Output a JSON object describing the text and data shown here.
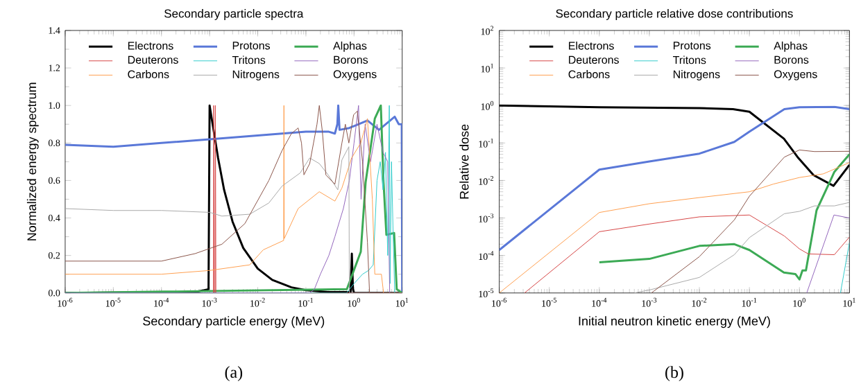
{
  "chart_data": [
    {
      "type": "line",
      "title": "Secondary particle spectra",
      "xlabel": "Secondary particle energy (MeV)",
      "ylabel": "Normalized energy spectrum",
      "annotations": [
        "(a)"
      ],
      "log": "x",
      "legend": "top",
      "xlim": [
        1e-06,
        10
      ],
      "ylim": [
        0,
        1.4
      ],
      "xticks": [
        {
          "value": 1e-06,
          "label": "10$^{-6}$"
        },
        {
          "value": 1e-05,
          "label": "10$^{-5}$"
        },
        {
          "value": 0.0001,
          "label": "10$^{-4}$"
        },
        {
          "value": 0.001,
          "label": "10$^{-3}$"
        },
        {
          "value": 0.01,
          "label": "10$^{-2}$"
        },
        {
          "value": 0.1,
          "label": "10$^{-1}$"
        },
        {
          "value": 1,
          "label": "10$^{0}$"
        },
        {
          "value": 10,
          "label": "10$^{1}$"
        }
      ],
      "yticks": [
        {
          "value": 0,
          "label": "0.0"
        },
        {
          "value": 0.2,
          "label": "0.2"
        },
        {
          "value": 0.4,
          "label": "0.4"
        },
        {
          "value": 0.6,
          "label": "0.6"
        },
        {
          "value": 0.8,
          "label": "0.8"
        },
        {
          "value": 1.0,
          "label": "1.0"
        },
        {
          "value": 1.2,
          "label": "1.2"
        },
        {
          "value": 1.4,
          "label": "1.4"
        }
      ],
      "series": [
        {
          "name": "Electrons",
          "color": "#000000",
          "x": [
            1e-06,
            0.0005,
            0.00095,
            0.001,
            0.0015,
            0.002,
            0.003,
            0.005,
            0.01,
            0.02,
            0.05,
            0.1,
            0.3,
            0.85,
            0.9,
            0.95,
            1,
            10
          ],
          "values": [
            0,
            0.005,
            0.02,
            1.0,
            0.72,
            0.55,
            0.38,
            0.24,
            0.13,
            0.07,
            0.03,
            0.015,
            0.005,
            0.005,
            0.21,
            0.02,
            0,
            0
          ]
        },
        {
          "name": "Protons",
          "color": "#5a78d8",
          "x": [
            1e-06,
            1e-05,
            0.0001,
            0.001,
            0.01,
            0.1,
            0.3,
            0.4,
            0.45,
            0.47,
            0.5,
            0.8,
            1.9,
            3.3,
            7,
            8.5,
            9.8,
            10
          ],
          "values": [
            0.79,
            0.78,
            0.8,
            0.82,
            0.84,
            0.86,
            0.86,
            0.85,
            0.9,
            1.0,
            0.87,
            0.88,
            0.92,
            0.87,
            0.94,
            0.9,
            0.9,
            0
          ]
        },
        {
          "name": "Alphas",
          "color": "#3caa55",
          "x": [
            1e-06,
            0.71,
            1.38,
            1.74,
            2.7,
            3.6,
            4.1,
            4.7,
            6.8,
            7.7,
            10
          ],
          "values": [
            0,
            0.02,
            0.22,
            0.59,
            0.93,
            1.0,
            0.59,
            0.31,
            0.32,
            0.02,
            0
          ]
        },
        {
          "name": "Deuterons",
          "color": "#d64545",
          "x": [
            1e-06,
            0.0012,
            0.00122,
            0.00125,
            0.0013,
            0.00132,
            0.00135,
            10
          ],
          "values": [
            0,
            0,
            1.0,
            0,
            0,
            1.0,
            0,
            0
          ]
        },
        {
          "name": "Tritons",
          "color": "#33cccc",
          "x": [
            1e-06,
            0.7,
            1,
            1.5,
            2,
            2.5,
            3,
            3.5,
            4,
            4.5,
            5,
            5.4,
            5.6,
            6,
            6.5,
            7,
            10
          ],
          "values": [
            0,
            0,
            0.05,
            0.1,
            0.12,
            0.15,
            0.6,
            0.7,
            0.55,
            0.75,
            0.2,
            1.0,
            0.05,
            0.7,
            0.3,
            0,
            0
          ]
        },
        {
          "name": "Borons",
          "color": "#9467bd",
          "x": [
            1e-06,
            0.12,
            0.15,
            0.2,
            0.3,
            0.4,
            0.6,
            0.8,
            1.0,
            1.24,
            1.4,
            1.7,
            2.2,
            3,
            4,
            5,
            5.5,
            10
          ],
          "values": [
            0,
            0,
            0.02,
            0.1,
            0.2,
            0.3,
            0.45,
            0.6,
            0.8,
            1.0,
            0.5,
            0.9,
            0.7,
            0.9,
            0.75,
            0.7,
            0,
            0
          ]
        },
        {
          "name": "Carbons",
          "color": "#ffa050",
          "x": [
            1e-06,
            0.0001,
            0.001,
            0.0068,
            0.013,
            0.0345,
            0.035,
            0.0355,
            0.069,
            0.19,
            0.4,
            0.56,
            0.89,
            1.38,
            1.9,
            2.4,
            2.7,
            3.7,
            4.1,
            10
          ],
          "values": [
            0.1,
            0.1,
            0.12,
            0.15,
            0.23,
            0.28,
            1.0,
            0.29,
            0.45,
            0.54,
            0.49,
            0.56,
            0.72,
            0.8,
            0.93,
            0.5,
            0.1,
            0.1,
            0,
            0
          ]
        },
        {
          "name": "Nitrogens",
          "color": "#aaaaaa",
          "x": [
            1e-06,
            1e-05,
            0.0001,
            0.001,
            0.0018,
            0.0068,
            0.017,
            0.032,
            0.076,
            0.12,
            0.19,
            0.29,
            0.46,
            0.56,
            0.78,
            0.8,
            10
          ],
          "values": [
            0.45,
            0.44,
            0.44,
            0.43,
            0.41,
            0.42,
            0.48,
            0.57,
            0.64,
            0.72,
            0.69,
            0.63,
            0.55,
            0.71,
            0.78,
            0,
            0
          ]
        },
        {
          "name": "Oxygens",
          "color": "#8c564b",
          "x": [
            1e-06,
            0.0001,
            0.0005,
            0.0018,
            0.0054,
            0.017,
            0.032,
            0.05,
            0.069,
            0.081,
            0.091,
            0.12,
            0.17,
            0.19,
            0.22,
            0.26,
            0.4,
            0.56,
            0.66,
            0.78,
            0.98,
            1.17,
            1.5,
            1.9,
            2.1,
            10
          ],
          "values": [
            0.17,
            0.17,
            0.21,
            0.26,
            0.37,
            0.6,
            0.76,
            0.85,
            0.88,
            0.8,
            0.63,
            0.69,
            0.9,
            1.0,
            0.86,
            0.63,
            0.58,
            0.8,
            0.9,
            0.8,
            0.95,
            0.97,
            0.7,
            0.27,
            0,
            0
          ]
        }
      ]
    },
    {
      "type": "line",
      "title": "Secondary particle relative dose contributions",
      "xlabel": "Initial neutron kinetic energy (MeV)",
      "ylabel": "Relative dose",
      "annotations": [
        "(b)"
      ],
      "log": "xy",
      "legend": "top",
      "xlim": [
        1e-06,
        10
      ],
      "ylim": [
        1e-05,
        100
      ],
      "xticks": [
        {
          "value": 1e-06,
          "label": "10$^{-6}$"
        },
        {
          "value": 1e-05,
          "label": "10$^{-5}$"
        },
        {
          "value": 0.0001,
          "label": "10$^{-4}$"
        },
        {
          "value": 0.001,
          "label": "10$^{-3}$"
        },
        {
          "value": 0.01,
          "label": "10$^{-2}$"
        },
        {
          "value": 0.1,
          "label": "10$^{-1}$"
        },
        {
          "value": 1,
          "label": "10$^{0}$"
        },
        {
          "value": 10,
          "label": "10$^{1}$"
        }
      ],
      "yticks": [
        {
          "value": 1e-05,
          "label": "10$^{-5}$"
        },
        {
          "value": 0.0001,
          "label": "10$^{-4}$"
        },
        {
          "value": 0.001,
          "label": "10$^{-3}$"
        },
        {
          "value": 0.01,
          "label": "10$^{-2}$"
        },
        {
          "value": 0.1,
          "label": "10$^{-1}$"
        },
        {
          "value": 1,
          "label": "10$^{0}$"
        },
        {
          "value": 10,
          "label": "10$^{1}$"
        },
        {
          "value": 100,
          "label": "10$^{2}$"
        }
      ],
      "series": [
        {
          "name": "Electrons",
          "color": "#000000",
          "x": [
            1e-06,
            0.0001,
            0.01,
            0.047,
            0.1,
            0.49,
            0.92,
            1.9,
            4.8,
            10
          ],
          "values": [
            1.0,
            0.9,
            0.85,
            0.8,
            0.68,
            0.13,
            0.042,
            0.014,
            0.0072,
            0.026
          ]
        },
        {
          "name": "Protons",
          "color": "#5a78d8",
          "x": [
            1e-06,
            0.0001,
            0.001,
            0.01,
            0.05,
            0.1,
            0.5,
            1,
            5,
            10
          ],
          "values": [
            0.00014,
            0.0195,
            0.032,
            0.052,
            0.107,
            0.2,
            0.8,
            0.9,
            0.92,
            0.8
          ]
        },
        {
          "name": "Alphas",
          "color": "#3caa55",
          "x": [
            0.0001,
            0.001,
            0.01,
            0.05,
            0.1,
            0.49,
            0.83,
            1.0,
            1.15,
            1.35,
            2.2,
            4.2,
            5.0,
            10
          ],
          "values": [
            6.6e-05,
            8.1e-05,
            0.00018,
            0.0002,
            0.00014,
            3.5e-05,
            3.2e-05,
            2.3e-05,
            4e-05,
            4e-05,
            0.0016,
            0.0102,
            0.017,
            0.05
          ]
        },
        {
          "name": "Deuterons",
          "color": "#d64545",
          "x": [
            3.2e-06,
            0.0001,
            0.001,
            0.01,
            0.1,
            0.5,
            1,
            1.5,
            5,
            10
          ],
          "values": [
            1e-05,
            0.00043,
            0.00069,
            0.00107,
            0.0012,
            0.00033,
            0.00015,
            0.00011,
            0.000105,
            0.00031
          ]
        },
        {
          "name": "Tritons",
          "color": "#33cccc",
          "x": [
            6.6,
            10
          ],
          "values": [
            1e-05,
            0.00022
          ]
        },
        {
          "name": "Borons",
          "color": "#9467bd",
          "x": [
            1.4,
            4.9,
            10
          ],
          "values": [
            1e-05,
            0.0012,
            0.001
          ]
        },
        {
          "name": "Carbons",
          "color": "#ffa050",
          "x": [
            1e-06,
            0.0001,
            0.001,
            0.01,
            0.1,
            0.3,
            1,
            3,
            10
          ],
          "values": [
            1e-05,
            0.0014,
            0.0024,
            0.0035,
            0.005,
            0.008,
            0.012,
            0.015,
            0.03
          ]
        },
        {
          "name": "Nitrogens",
          "color": "#aaaaaa",
          "x": [
            0.0005,
            0.001,
            0.01,
            0.05,
            0.1,
            0.5,
            1,
            2,
            5,
            10
          ],
          "values": [
            1e-05,
            1.2e-05,
            2.6e-05,
            0.000105,
            0.0003,
            0.0013,
            0.0015,
            0.0021,
            0.0021,
            0.0026
          ]
        },
        {
          "name": "Oxygens",
          "color": "#8c564b",
          "x": [
            0.0011,
            0.01,
            0.05,
            0.1,
            0.5,
            1,
            2,
            10
          ],
          "values": [
            1e-05,
            9.3e-05,
            0.00089,
            0.0038,
            0.042,
            0.065,
            0.059,
            0.06
          ]
        }
      ]
    }
  ]
}
